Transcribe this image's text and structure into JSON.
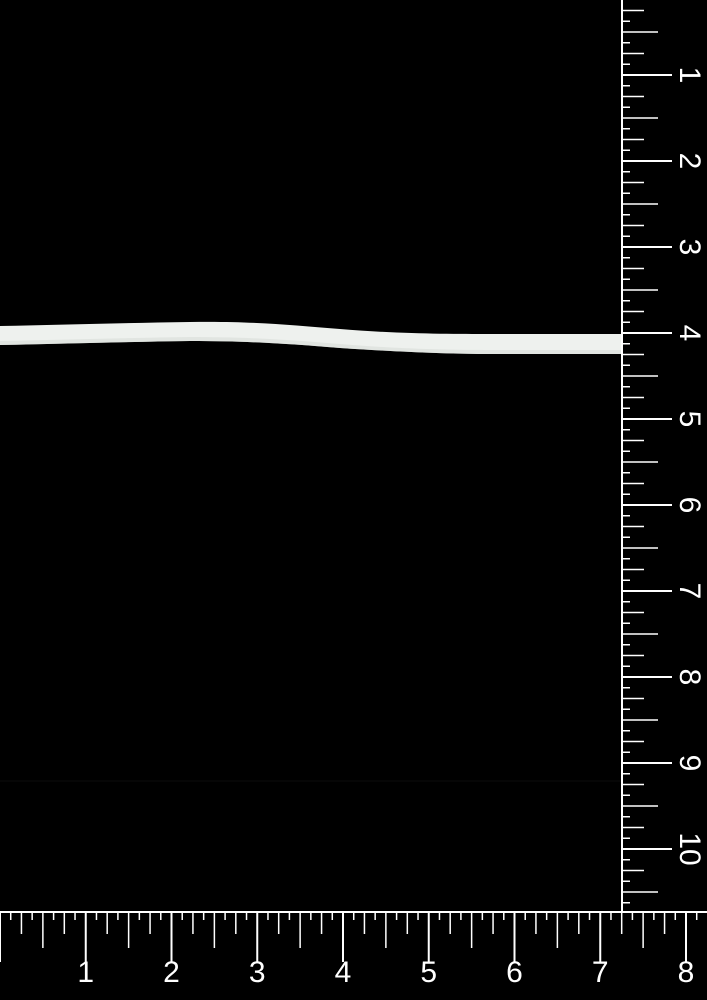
{
  "colors": {
    "background": "#000000",
    "ruler_lines": "#ffffff",
    "elastic_band": "#eef1ee"
  },
  "vertical_ruler": {
    "labels": [
      "1",
      "2",
      "3",
      "4",
      "5",
      "6",
      "7",
      "8",
      "9",
      "10"
    ]
  },
  "horizontal_ruler": {
    "labels": [
      "1",
      "2",
      "3",
      "4",
      "5",
      "6",
      "7",
      "8"
    ]
  }
}
